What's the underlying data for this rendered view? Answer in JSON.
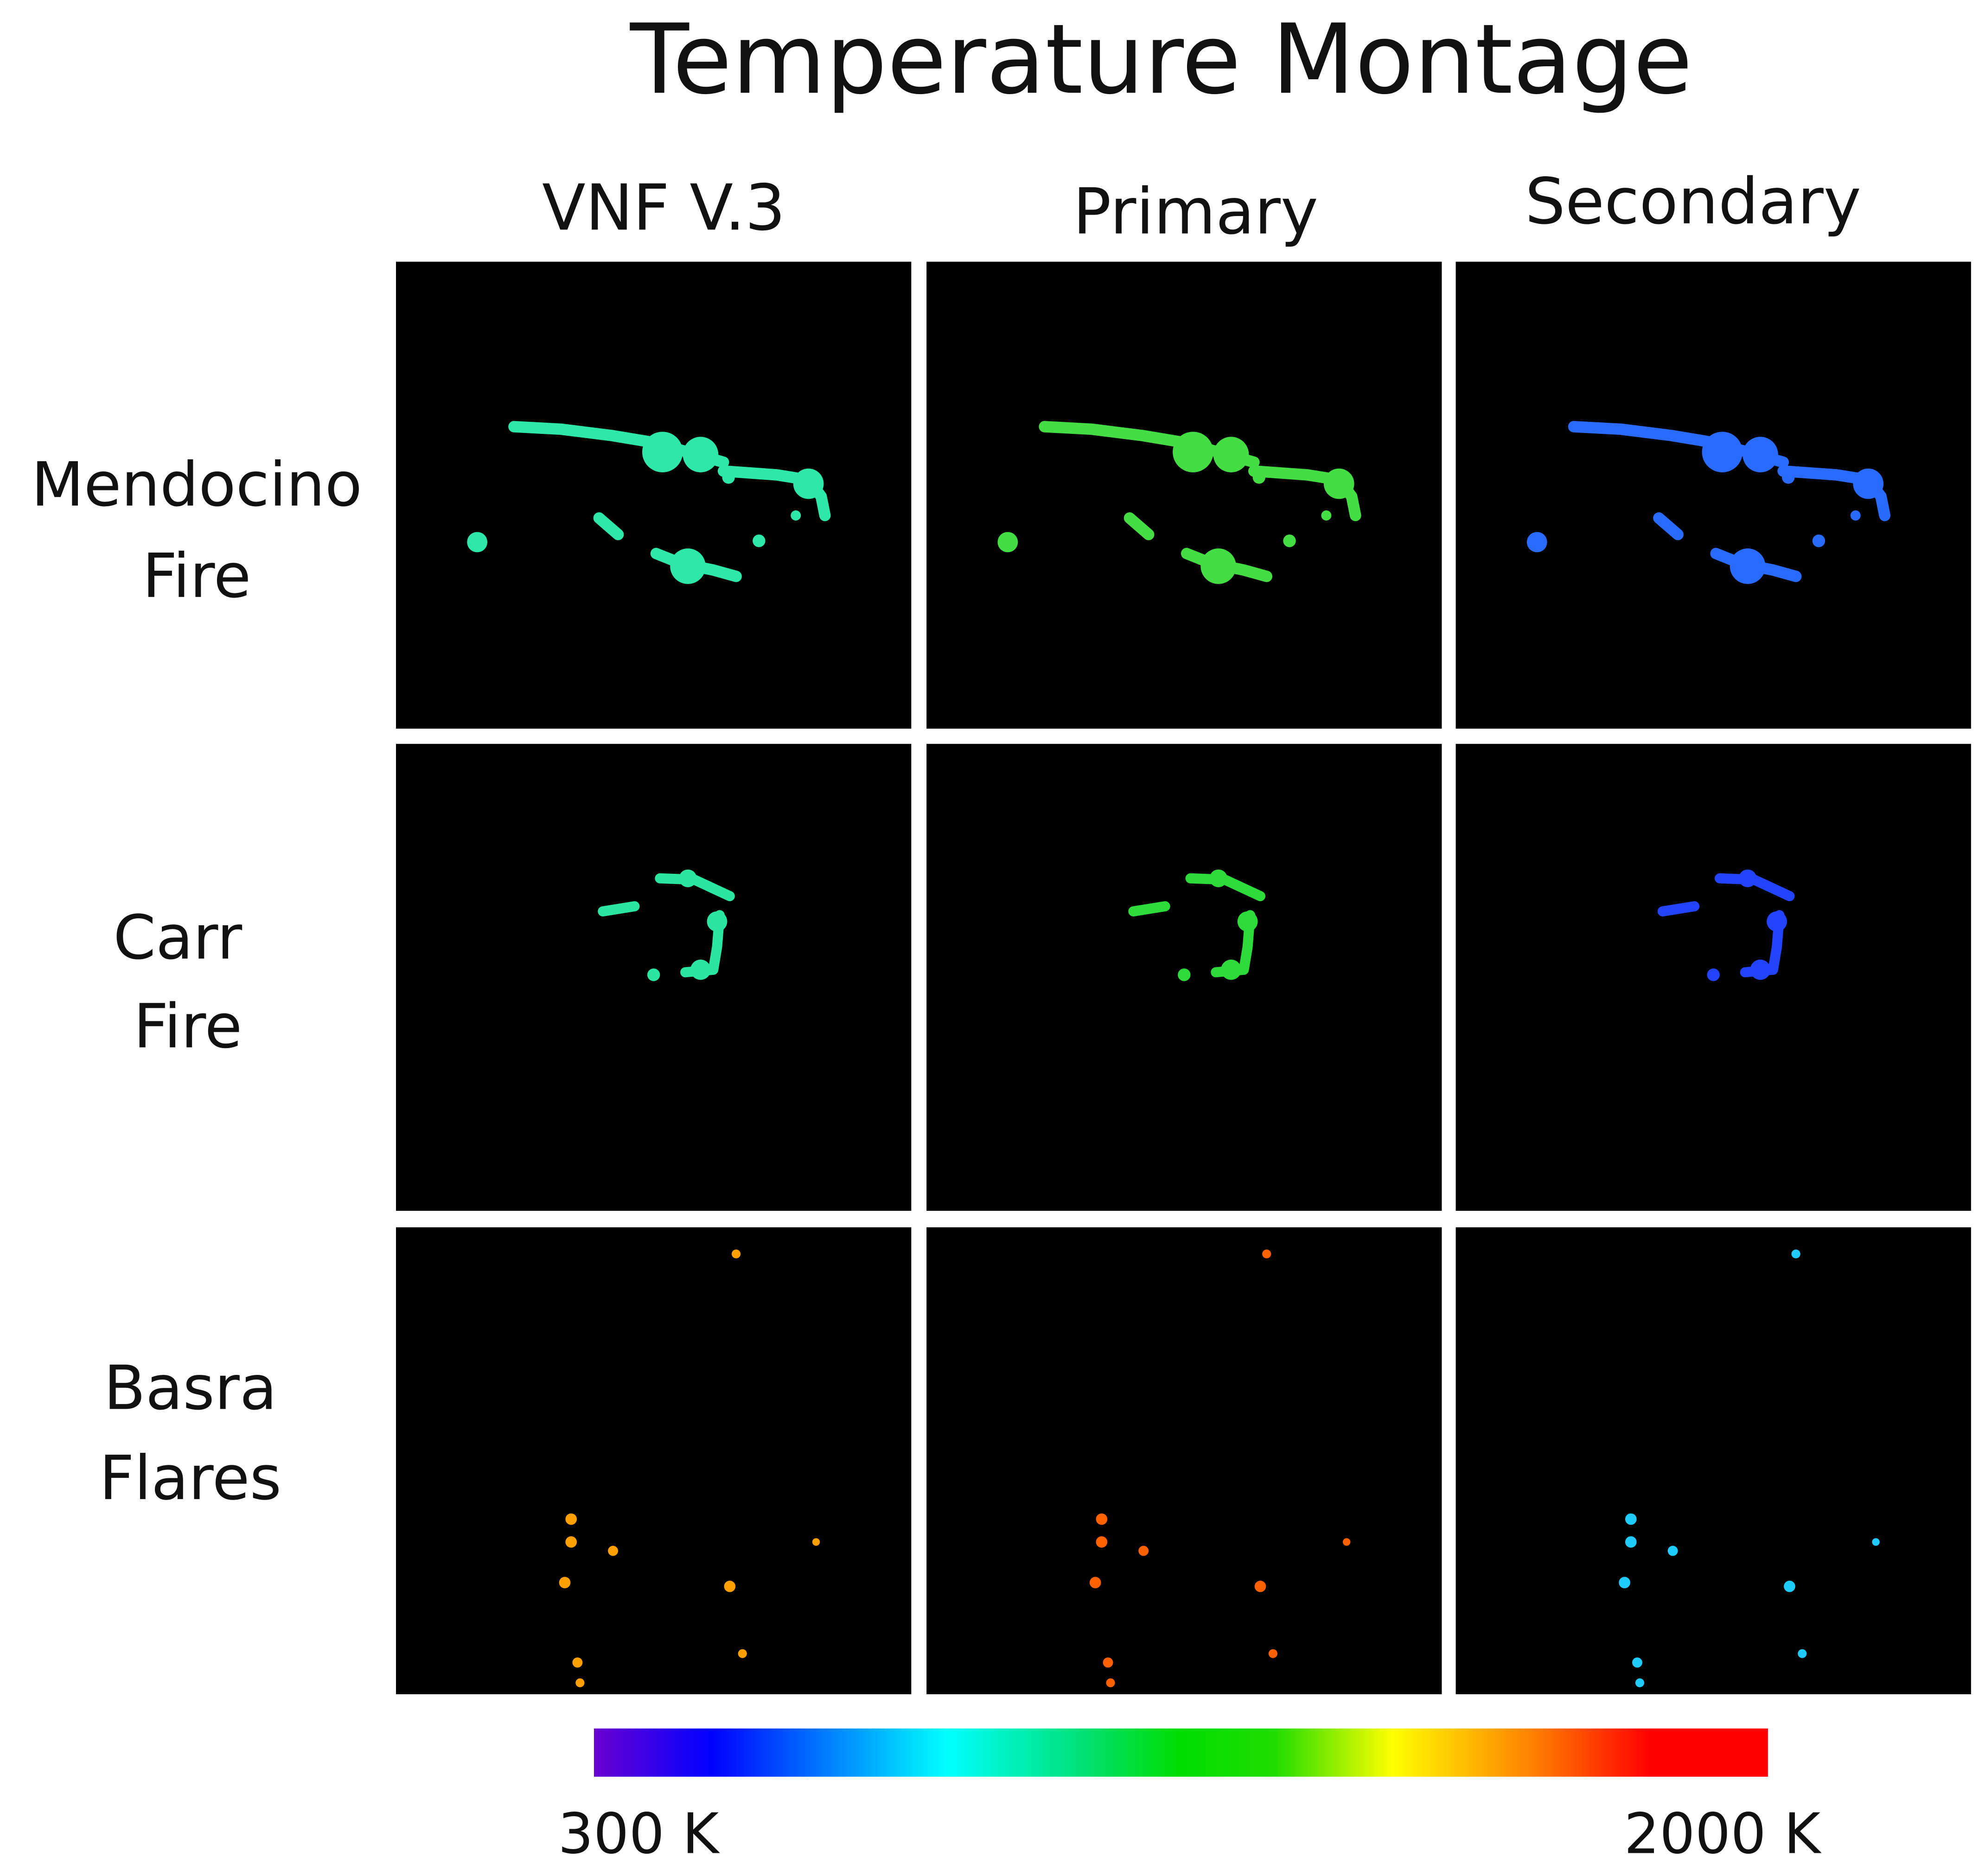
{
  "title": "Temperature Montage",
  "columns": [
    "VNF V.3",
    "Primary",
    "Secondary"
  ],
  "rows": [
    [
      "Mendocino",
      "Fire"
    ],
    [
      "Carr",
      "Fire"
    ],
    [
      "Basra",
      "Flares"
    ]
  ],
  "colorbar": {
    "min_label": "300 K",
    "max_label": "2000 K"
  }
}
